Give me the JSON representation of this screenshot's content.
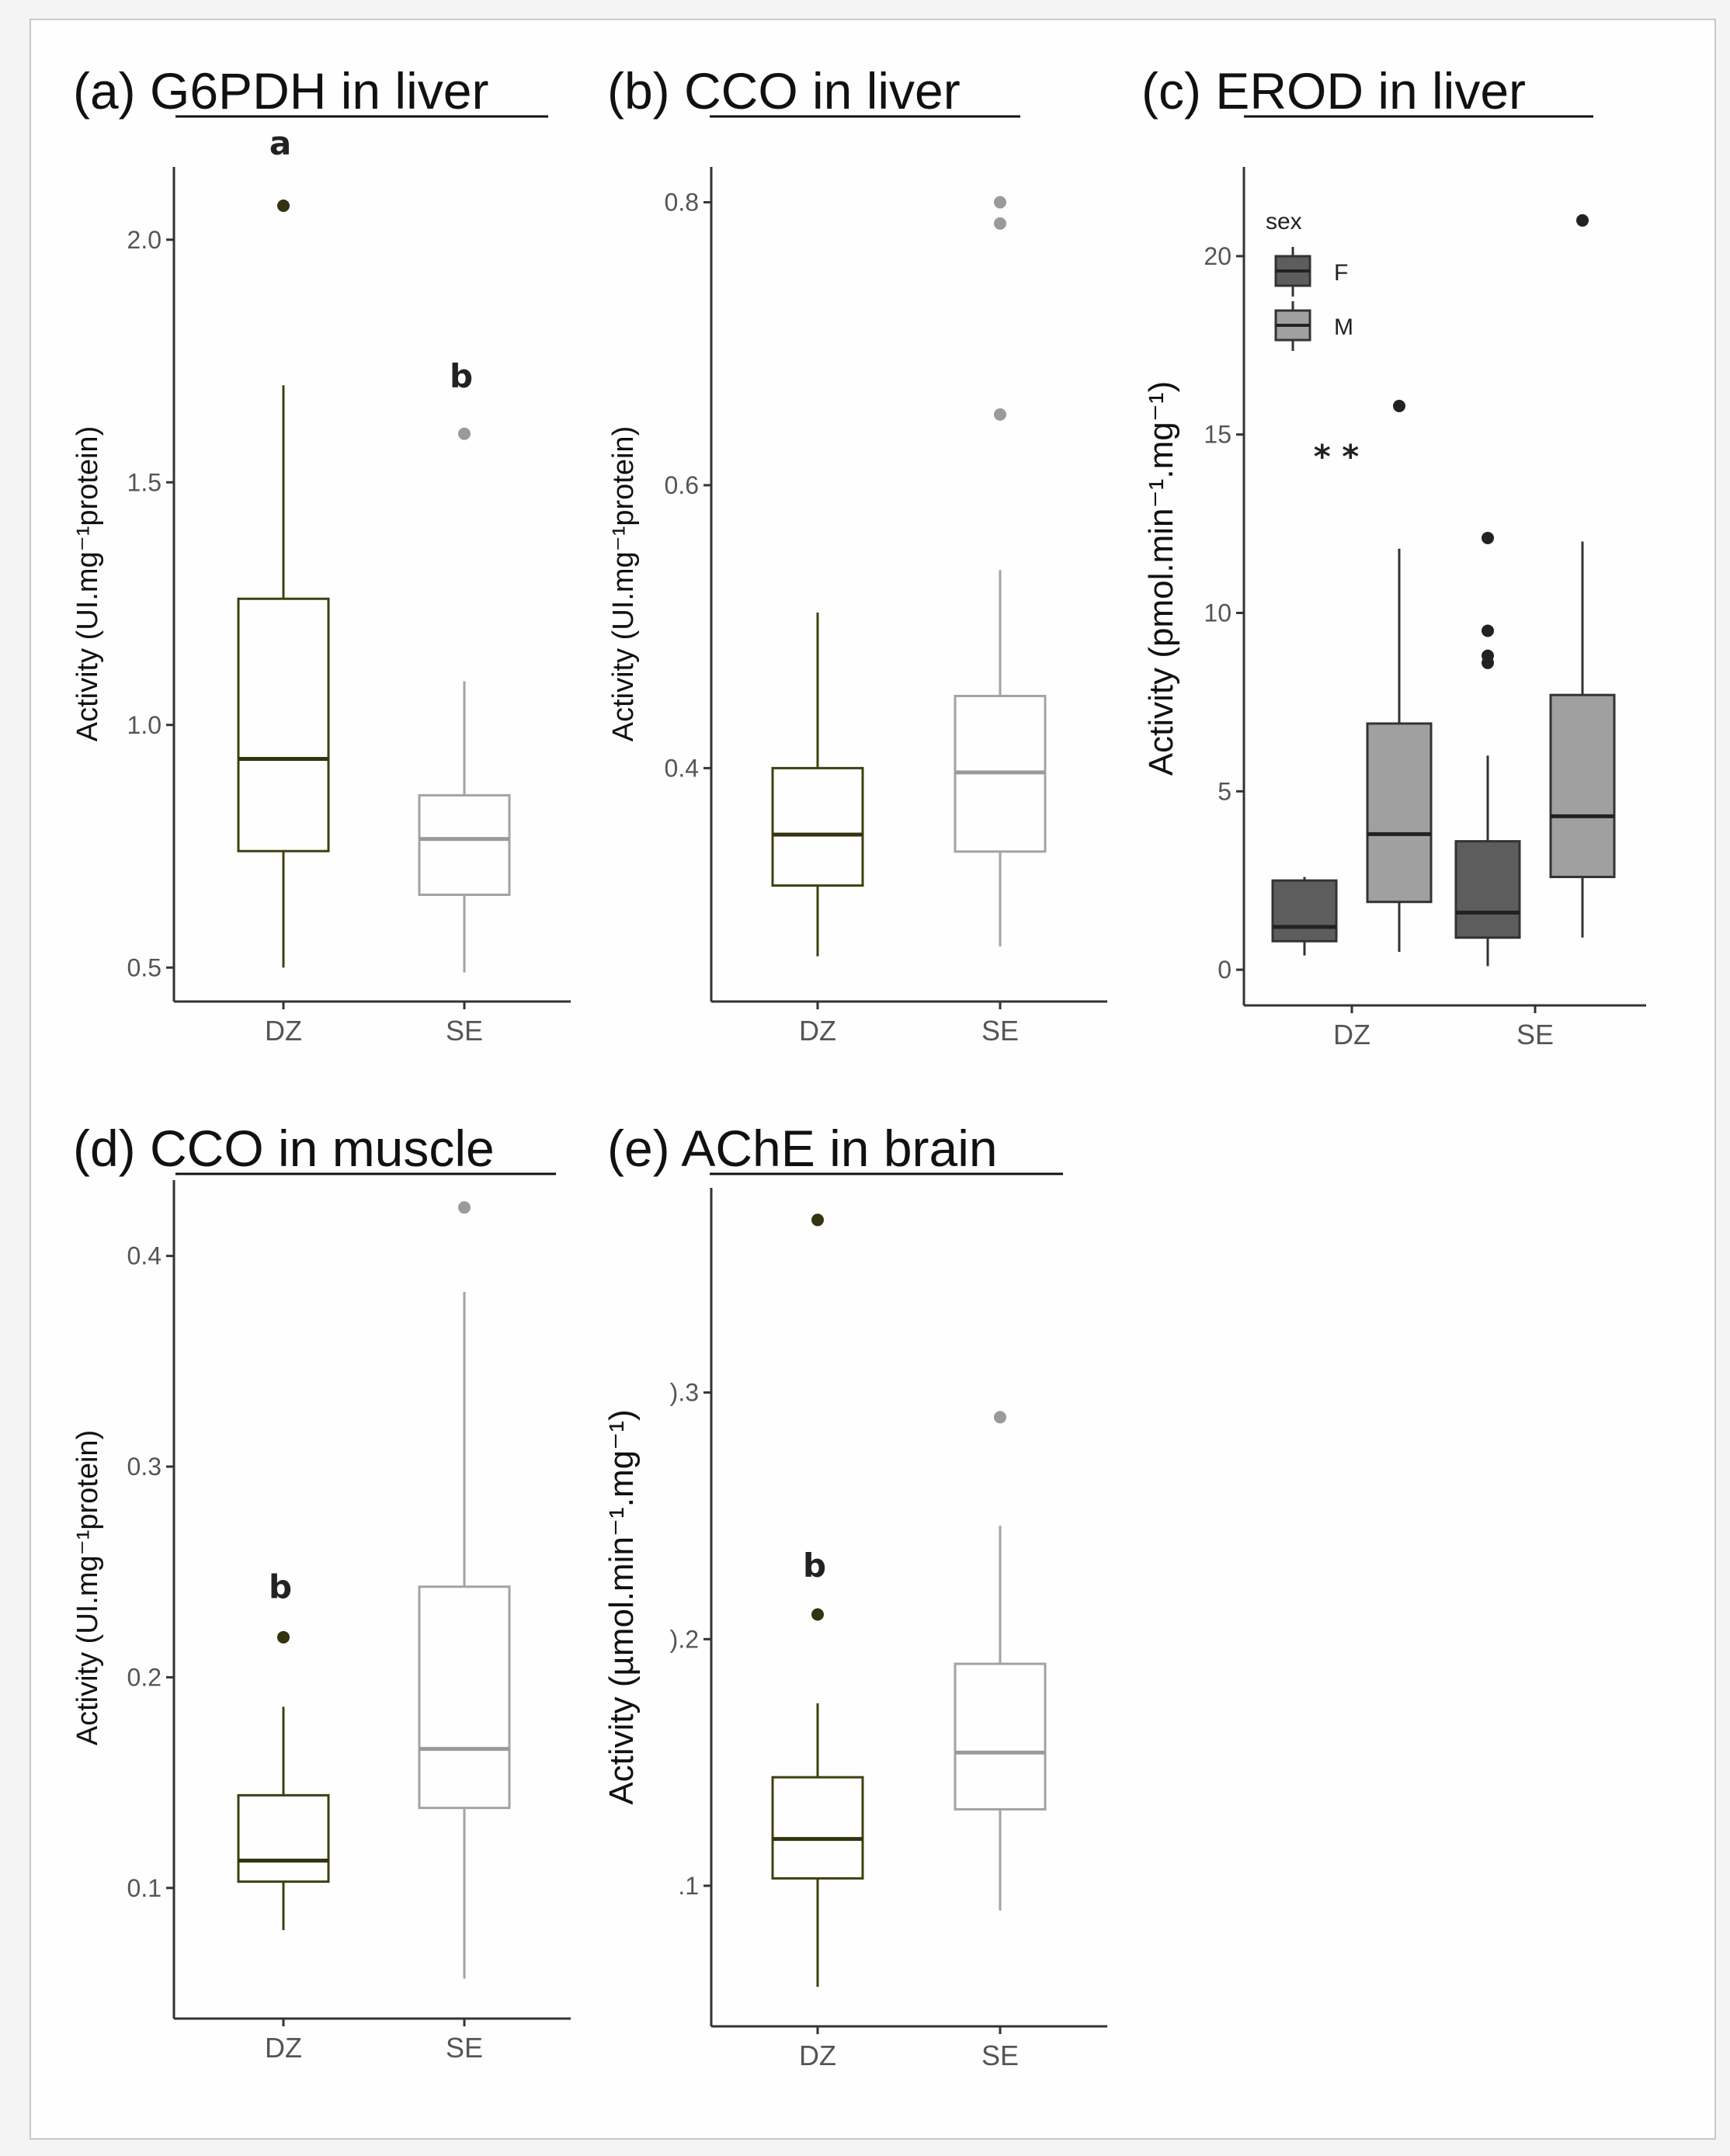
{
  "chart_data": [
    {
      "id": "a",
      "type": "box",
      "title": "(a) G6PDH in liver",
      "ylabel": "Activity (UI.mg⁻¹protein)",
      "ylim": [
        0.43,
        2.15
      ],
      "yticks": [
        0.5,
        1.0,
        1.5,
        2.0
      ],
      "ytick_labels": [
        "0.5",
        "1.0",
        "1.5",
        "2.0"
      ],
      "categories": [
        "DZ",
        "SE"
      ],
      "colors": [
        "#3f4010",
        "#a3a3a3"
      ],
      "boxes": [
        {
          "min": 0.5,
          "q1": 0.74,
          "median": 0.93,
          "q3": 1.26,
          "max": 1.7,
          "outliers": [
            2.07
          ]
        },
        {
          "min": 0.49,
          "q1": 0.65,
          "median": 0.765,
          "q3": 0.855,
          "max": 1.09,
          "outliers": [
            1.6
          ]
        }
      ],
      "annotations": [
        {
          "text": "a",
          "category": 0,
          "y": 2.2
        },
        {
          "text": "b",
          "category": 1,
          "y": 1.72
        }
      ]
    },
    {
      "id": "b",
      "type": "box",
      "title": "(b) CCO in liver",
      "ylabel": "Activity (UI.mg⁻¹protein)",
      "ylim": [
        0.235,
        0.825
      ],
      "yticks": [
        0.4,
        0.6,
        0.8
      ],
      "ytick_labels": [
        "0.4",
        "0.6",
        "0.8"
      ],
      "categories": [
        "DZ",
        "SE"
      ],
      "colors": [
        "#3f4010",
        "#a3a3a3"
      ],
      "boxes": [
        {
          "min": 0.267,
          "q1": 0.317,
          "median": 0.353,
          "q3": 0.4,
          "max": 0.51,
          "outliers": []
        },
        {
          "min": 0.274,
          "q1": 0.341,
          "median": 0.397,
          "q3": 0.451,
          "max": 0.54,
          "outliers": [
            0.8,
            0.785,
            0.65
          ]
        }
      ]
    },
    {
      "id": "c",
      "type": "box",
      "title": "(c) EROD in liver",
      "ylabel": "Activity (pmol.min⁻¹.mg⁻¹)",
      "ylim": [
        -1,
        22.5
      ],
      "yticks": [
        0,
        5,
        10,
        15,
        20
      ],
      "ytick_labels": [
        "0",
        "5",
        "10",
        "15",
        "20"
      ],
      "categories": [
        "DZ",
        "SE"
      ],
      "legend": {
        "title": "sex",
        "entries": [
          "F",
          "M"
        ],
        "colors": [
          "#5d5d5d",
          "#a0a0a0"
        ]
      },
      "series": [
        {
          "name": "F",
          "boxes": [
            {
              "min": 0.4,
              "q1": 0.8,
              "median": 1.2,
              "q3": 2.5,
              "max": 2.6,
              "outliers": []
            },
            {
              "min": 0.1,
              "q1": 0.9,
              "median": 1.6,
              "q3": 3.6,
              "max": 6.0,
              "outliers": [
                12.1,
                9.5,
                8.8,
                8.6
              ]
            }
          ]
        },
        {
          "name": "M",
          "boxes": [
            {
              "min": 0.5,
              "q1": 1.9,
              "median": 3.8,
              "q3": 6.9,
              "max": 11.8,
              "outliers": [
                15.8
              ]
            },
            {
              "min": 0.9,
              "q1": 2.6,
              "median": 4.3,
              "q3": 7.7,
              "max": 12.0,
              "outliers": [
                21.0
              ]
            }
          ]
        }
      ],
      "annotations": [
        {
          "text": "* *",
          "category": 0,
          "y": 14.4
        }
      ]
    },
    {
      "id": "d",
      "type": "box",
      "title": "(d) CCO in muscle",
      "ylabel": "Activity (UI.mg⁻¹protein)",
      "ylim": [
        0.038,
        0.436
      ],
      "yticks": [
        0.1,
        0.2,
        0.3,
        0.4
      ],
      "ytick_labels": [
        "0.1",
        "0.2",
        "0.3",
        "0.4"
      ],
      "categories": [
        "DZ",
        "SE"
      ],
      "colors": [
        "#3f4010",
        "#a3a3a3"
      ],
      "boxes": [
        {
          "min": 0.08,
          "q1": 0.103,
          "median": 0.113,
          "q3": 0.144,
          "max": 0.186,
          "outliers": [
            0.219
          ]
        },
        {
          "min": 0.057,
          "q1": 0.138,
          "median": 0.166,
          "q3": 0.243,
          "max": 0.383,
          "outliers": [
            0.423
          ]
        }
      ],
      "annotations": [
        {
          "text": "b",
          "category": 0,
          "y": 0.243
        }
      ]
    },
    {
      "id": "e",
      "type": "box",
      "title": "(e) AChE in brain",
      "ylabel": "Activity (µmol.min⁻¹.mg⁻¹)",
      "ylim": [
        0.043,
        0.383
      ],
      "yticks": [
        0.1,
        0.2,
        0.3
      ],
      "ytick_labels": [
        ".1",
        ").2",
        ").3"
      ],
      "categories": [
        "DZ",
        "SE"
      ],
      "colors": [
        "#3f4010",
        "#a3a3a3"
      ],
      "boxes": [
        {
          "min": 0.059,
          "q1": 0.103,
          "median": 0.119,
          "q3": 0.144,
          "max": 0.174,
          "outliers": [
            0.37,
            0.21
          ]
        },
        {
          "min": 0.09,
          "q1": 0.131,
          "median": 0.154,
          "q3": 0.19,
          "max": 0.246,
          "outliers": [
            0.29
          ]
        }
      ],
      "annotations": [
        {
          "text": "b",
          "category": 0,
          "y": 0.23
        }
      ]
    }
  ]
}
